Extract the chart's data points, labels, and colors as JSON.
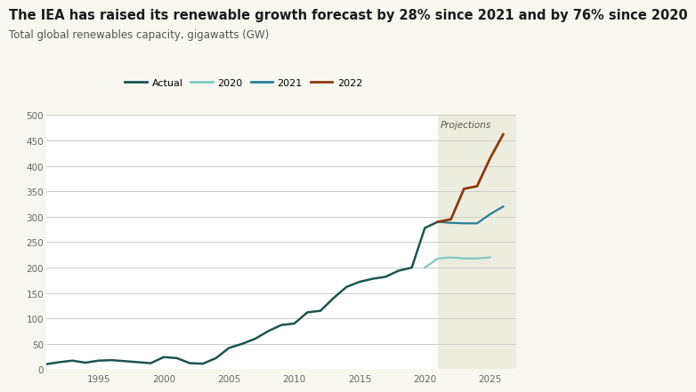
{
  "title": "The IEA has raised its renewable growth forecast by 28% since 2021 and by 76% since 2020",
  "subtitle": "Total global renewables capacity, gigawatts (GW)",
  "bg_color": "#f7f7ef",
  "plot_bg_color": "#ffffff",
  "projection_bg_color": "#ededdf",
  "title_fontsize": 10.5,
  "subtitle_fontsize": 8.5,
  "actual": {
    "years": [
      1991,
      1992,
      1993,
      1994,
      1995,
      1996,
      1997,
      1998,
      1999,
      2000,
      2001,
      2002,
      2003,
      2004,
      2005,
      2006,
      2007,
      2008,
      2009,
      2010,
      2011,
      2012,
      2013,
      2014,
      2015,
      2016,
      2017,
      2018,
      2019,
      2020,
      2021
    ],
    "values": [
      10,
      14,
      17,
      13,
      17,
      18,
      16,
      14,
      12,
      24,
      22,
      12,
      11,
      22,
      42,
      50,
      60,
      75,
      87,
      90,
      112,
      115,
      140,
      162,
      172,
      178,
      182,
      194,
      200,
      278,
      290
    ],
    "color": "#1a5453",
    "linewidth": 1.8
  },
  "forecast_2020": {
    "years": [
      2020,
      2021,
      2022,
      2023,
      2024,
      2025
    ],
    "values": [
      200,
      218,
      220,
      218,
      218,
      220
    ],
    "color": "#80c8c4",
    "linewidth": 1.6
  },
  "forecast_2021": {
    "years": [
      2021,
      2022,
      2023,
      2024,
      2025,
      2026
    ],
    "values": [
      290,
      288,
      287,
      287,
      305,
      320
    ],
    "color": "#2a7d9c",
    "linewidth": 1.6
  },
  "forecast_2022": {
    "years": [
      2021,
      2022,
      2023,
      2024,
      2025,
      2026
    ],
    "values": [
      290,
      295,
      355,
      360,
      415,
      462
    ],
    "color": "#8b3a0f",
    "linewidth": 2.0
  },
  "projection_start": 2021,
  "xlim": [
    1991,
    2027
  ],
  "ylim": [
    0,
    500
  ],
  "yticks": [
    0,
    50,
    100,
    150,
    200,
    250,
    300,
    350,
    400,
    450,
    500
  ],
  "xticks": [
    1995,
    2000,
    2005,
    2010,
    2015,
    2020,
    2025
  ],
  "projections_label": "Projections",
  "legend_items": [
    {
      "label": "Actual",
      "color": "#1a5453"
    },
    {
      "label": "2020",
      "color": "#80c8c4"
    },
    {
      "label": "2021",
      "color": "#2a7d9c"
    },
    {
      "label": "2022",
      "color": "#8b3a0f"
    }
  ]
}
